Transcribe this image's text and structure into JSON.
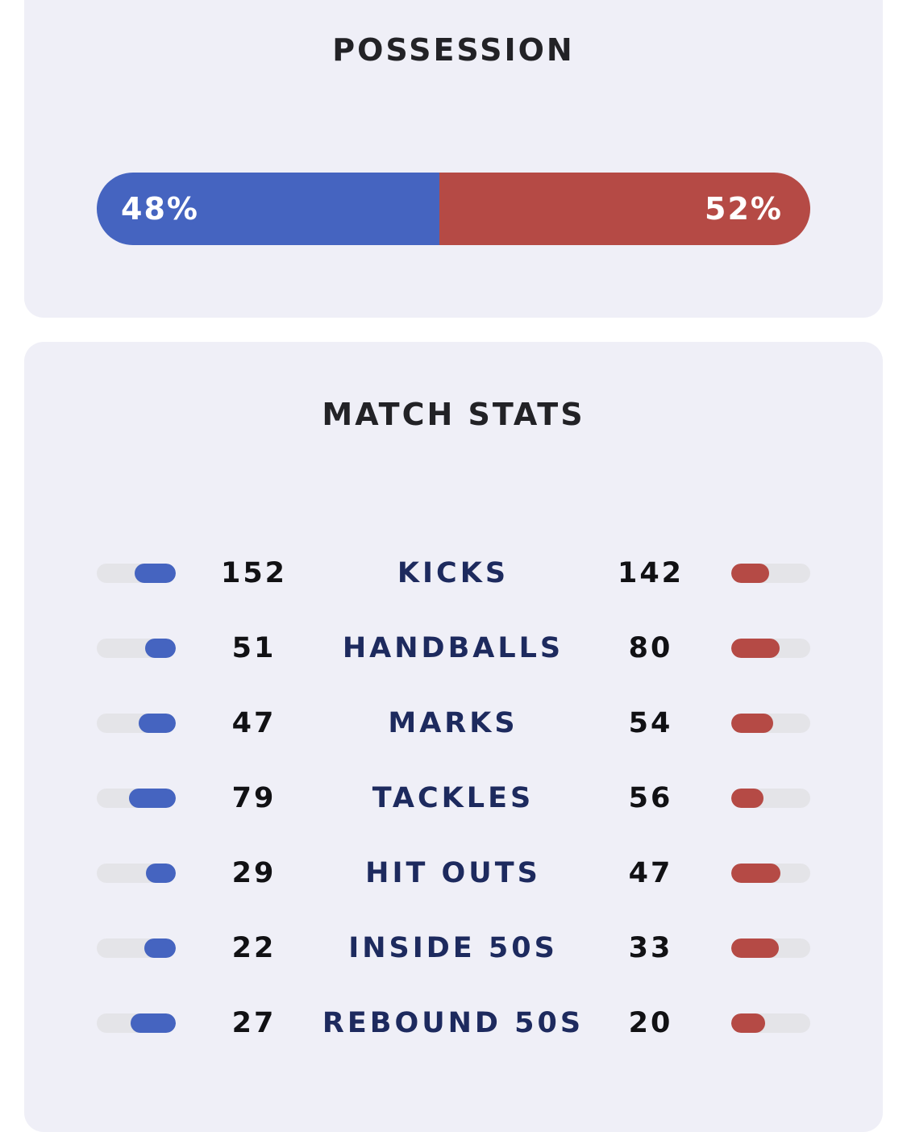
{
  "possession": {
    "title": "POSSESSION",
    "home_label": "48%",
    "away_label": "52%",
    "home_fraction": 0.48,
    "away_fraction": 0.52
  },
  "match_stats": {
    "title": "MATCH STATS",
    "rows": [
      {
        "label": "KICKS",
        "home": "152",
        "away": "142",
        "home_level": 0.52,
        "away_level": 0.48
      },
      {
        "label": "HANDBALLS",
        "home": "51",
        "away": "80",
        "home_level": 0.39,
        "away_level": 0.61
      },
      {
        "label": "MARKS",
        "home": "47",
        "away": "54",
        "home_level": 0.47,
        "away_level": 0.53
      },
      {
        "label": "TACKLES",
        "home": "79",
        "away": "56",
        "home_level": 0.59,
        "away_level": 0.41
      },
      {
        "label": "HIT OUTS",
        "home": "29",
        "away": "47",
        "home_level": 0.38,
        "away_level": 0.62
      },
      {
        "label": "INSIDE 50S",
        "home": "22",
        "away": "33",
        "home_level": 0.4,
        "away_level": 0.6
      },
      {
        "label": "REBOUND 50S",
        "home": "27",
        "away": "20",
        "home_level": 0.57,
        "away_level": 0.43
      }
    ]
  },
  "colors": {
    "home": "#4564c0",
    "away": "#b54a45",
    "card_background": "#efeff7",
    "track": "#e4e4e8",
    "label_text": "#1d2a5e"
  }
}
